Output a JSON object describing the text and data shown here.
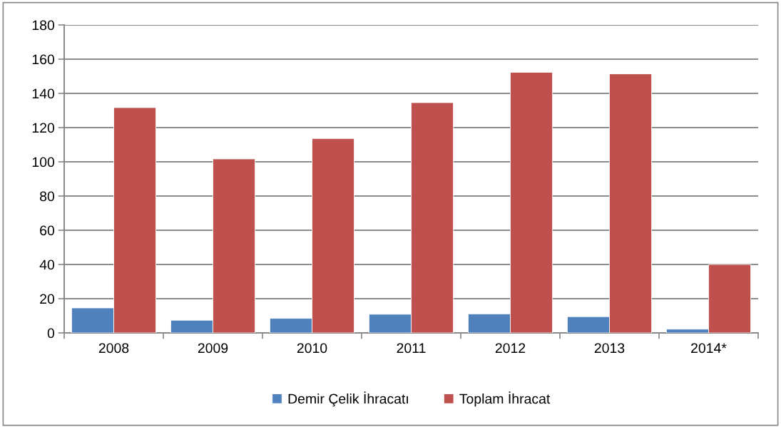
{
  "chart_data": {
    "type": "bar",
    "categories": [
      "2008",
      "2009",
      "2010",
      "2011",
      "2012",
      "2013",
      "2014*"
    ],
    "series": [
      {
        "name": "Demir Çelik İhracatı",
        "color": "#4f81bd",
        "values": [
          14.6,
          7.4,
          8.5,
          10.9,
          11.1,
          9.5,
          2.2
        ]
      },
      {
        "name": "Toplam İhracat",
        "color": "#c0504d",
        "values": [
          131.7,
          101.7,
          113.6,
          134.6,
          152.3,
          151.4,
          40
        ]
      }
    ],
    "ylim": [
      0,
      180
    ],
    "yticks": [
      0,
      20,
      40,
      60,
      80,
      100,
      120,
      140,
      160,
      180
    ],
    "grid": "y",
    "legend": "bottom"
  }
}
